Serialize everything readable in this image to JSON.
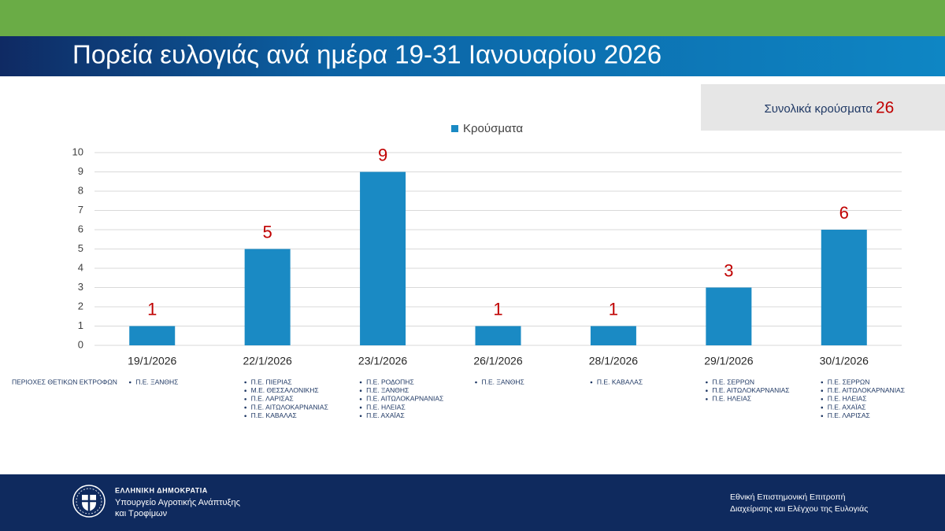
{
  "chart_data": {
    "type": "bar",
    "title": "Πορεία ευλογιάς ανά ημέρα 19-31 Ιανουαρίου 2026",
    "categories": [
      "19/1/2026",
      "22/1/2026",
      "23/1/2026",
      "26/1/2026",
      "28/1/2026",
      "29/1/2026",
      "30/1/2026"
    ],
    "series": [
      {
        "name": "Κρούσματα",
        "color": "#1a8ac4",
        "values": [
          1,
          5,
          9,
          1,
          1,
          3,
          6
        ]
      }
    ],
    "ylim": [
      0,
      10
    ],
    "yticks": [
      0,
      1,
      2,
      3,
      4,
      5,
      6,
      7,
      8,
      9,
      10
    ],
    "grid": true,
    "legend": "top"
  },
  "total": {
    "label": "Συνολικά κρούσματα",
    "value": 26
  },
  "regions": {
    "label": "ΠΕΡΙΟΧΕΣ ΘΕΤΙΚΩΝ ΕΚΤΡΟΦΩΝ",
    "items": [
      [
        "Π.Ε. ΞΑΝΘΗΣ"
      ],
      [
        "Π.Ε. ΠΙΕΡΙΑΣ",
        "Μ.Ε. ΘΕΣΣΑΛΟΝΙΚΗΣ",
        "Π.Ε. ΛΑΡΙΣΑΣ",
        "Π.Ε. ΑΙΤΩΛΟΚΑΡΝΑΝΙΑΣ",
        "Π.Ε. ΚΑΒΑΛΑΣ"
      ],
      [
        "Π.Ε. ΡΟΔΟΠΗΣ",
        "Π.Ε. ΞΑΝΘΗΣ",
        "Π.Ε. ΑΙΤΩΛΟΚΑΡΝΑΝΙΑΣ",
        "Π.Ε. ΗΛΕΙΑΣ",
        "Π.Ε. ΑΧΑΪΑΣ"
      ],
      [
        "Π.Ε. ΞΑΝΘΗΣ"
      ],
      [
        "Π.Ε. ΚΑΒΑΛΑΣ"
      ],
      [
        "Π.Ε. ΣΕΡΡΩΝ",
        "Π.Ε. ΑΙΤΩΛΟΚΑΡΝΑΝΙΑΣ",
        "Π.Ε. ΗΛΕΙΑΣ"
      ],
      [
        "Π.Ε. ΣΕΡΡΩΝ",
        "Π.Ε. ΑΙΤΩΛΟΚΑΡΝΑΝΙΑΣ",
        "Π.Ε. ΗΛΕΙΑΣ",
        "Π.Ε. ΑΧΑΪΑΣ",
        "Π.Ε. ΛΑΡΙΣΑΣ"
      ]
    ]
  },
  "footer": {
    "country": "ΕΛΛΗΝΙΚΗ ΔΗΜΟΚΡΑΤΙΑ",
    "ministry": [
      "Υπουργείο Αγροτικής Ανάπτυξης",
      "και Τροφίμων"
    ],
    "committee": [
      "Εθνική Επιστημονική Επιτροπή",
      "Διαχείρισης και Ελέγχου της Ευλογιάς"
    ]
  }
}
